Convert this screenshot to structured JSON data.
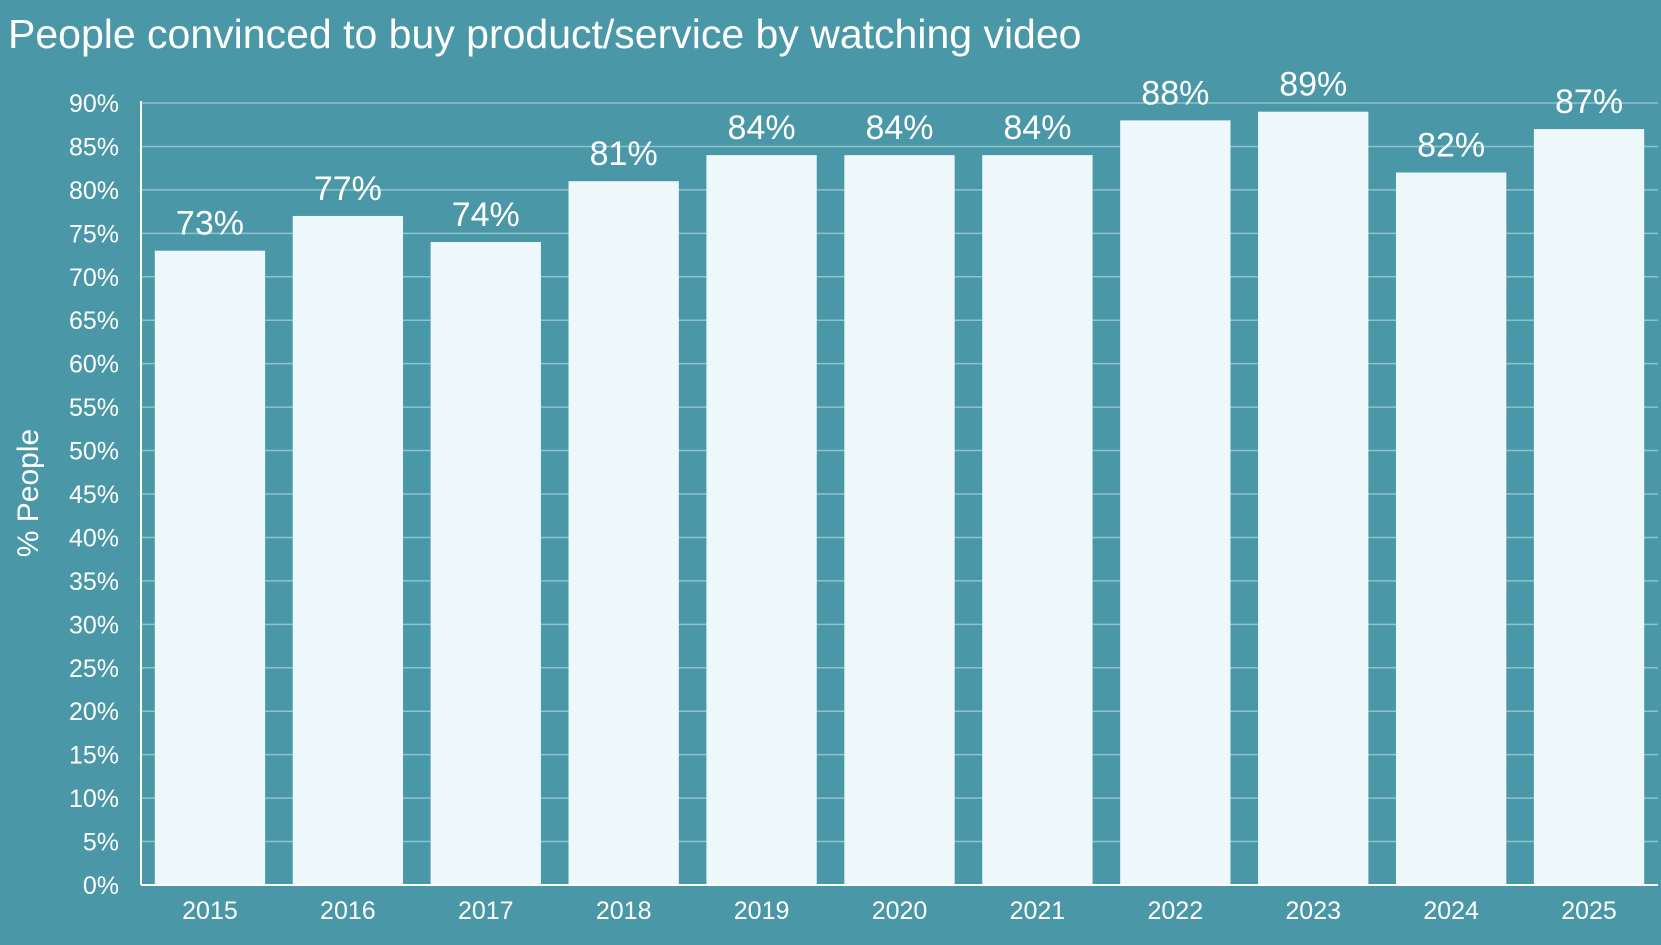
{
  "colors": {
    "background": "#4a98a7",
    "bar": "#eef7f9",
    "grid": "#8cc3cd",
    "axis": "#ffffff",
    "text": "#ffffff"
  },
  "chart_data": {
    "type": "bar",
    "title": "People convinced to buy product/service by watching video",
    "xlabel": "",
    "ylabel": "% People",
    "categories": [
      "2015",
      "2016",
      "2017",
      "2018",
      "2019",
      "2020",
      "2021",
      "2022",
      "2023",
      "2024",
      "2025"
    ],
    "values": [
      73,
      77,
      74,
      81,
      84,
      84,
      84,
      88,
      89,
      82,
      87
    ],
    "data_labels": [
      "73%",
      "77%",
      "74%",
      "81%",
      "84%",
      "84%",
      "84%",
      "88%",
      "89%",
      "82%",
      "87%"
    ],
    "ylim": [
      0,
      90
    ],
    "yticks": [
      0,
      5,
      10,
      15,
      20,
      25,
      30,
      35,
      40,
      45,
      50,
      55,
      60,
      65,
      70,
      75,
      80,
      85,
      90
    ],
    "ytick_labels": [
      "0%",
      "5%",
      "10%",
      "15%",
      "20%",
      "25%",
      "30%",
      "35%",
      "40%",
      "45%",
      "50%",
      "55%",
      "60%",
      "65%",
      "70%",
      "75%",
      "80%",
      "85%",
      "90%"
    ],
    "grid": true,
    "legend": "none"
  }
}
